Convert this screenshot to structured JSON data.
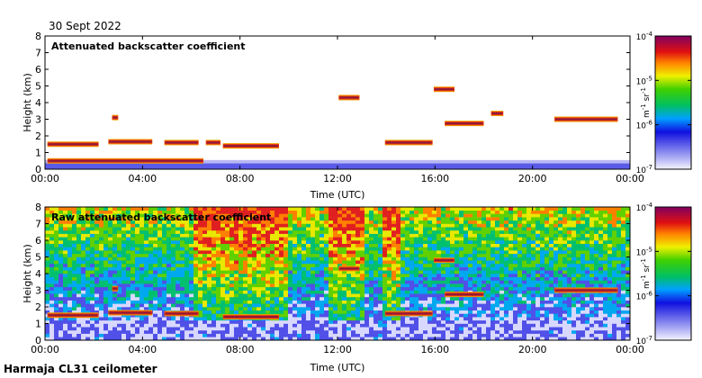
{
  "date_label": "30 Sept 2022",
  "instrument_label": "Harmaja CL31 ceilometer",
  "colors": {
    "background": "#ffffff",
    "cloud_core": "#8b1a3c",
    "cloud_edge": "#e83010",
    "surface_haze": "#4040e0"
  },
  "chart_data": [
    {
      "type": "heatmap",
      "title": "Attenuated backscatter coefficient",
      "xlabel": "Time (UTC)",
      "ylabel": "Height (km)",
      "xlim": [
        0,
        24
      ],
      "ylim": [
        0,
        8
      ],
      "x_tick_values": [
        0,
        4,
        8,
        12,
        16,
        20,
        24
      ],
      "x_tick_labels": [
        "00:00",
        "04:00",
        "08:00",
        "12:00",
        "16:00",
        "20:00",
        "00:00"
      ],
      "y_tick_labels": [
        "0",
        "1",
        "2",
        "3",
        "4",
        "5",
        "6",
        "7",
        "8"
      ],
      "colorbar": {
        "scale": "log",
        "range": [
          1e-07,
          0.0001
        ],
        "tick_bases": [
          "10",
          "10",
          "10",
          "10"
        ],
        "tick_exponents": [
          "-7",
          "-6",
          "-5",
          "-4"
        ],
        "unit_label": "m",
        "unit_exp1": "-1",
        "unit_sr": "sr",
        "unit_exp2": "-1"
      },
      "background_noise": false,
      "cloud_layers": [
        {
          "t_start": 0.1,
          "t_end": 2.2,
          "height_km": 1.5
        },
        {
          "t_start": 2.6,
          "t_end": 4.4,
          "height_km": 1.65
        },
        {
          "t_start": 4.9,
          "t_end": 6.3,
          "height_km": 1.6
        },
        {
          "t_start": 6.6,
          "t_end": 7.2,
          "height_km": 1.6
        },
        {
          "t_start": 7.3,
          "t_end": 9.6,
          "height_km": 1.4
        },
        {
          "t_start": 2.75,
          "t_end": 3.0,
          "height_km": 3.1
        },
        {
          "t_start": 12.05,
          "t_end": 12.9,
          "height_km": 4.3
        },
        {
          "t_start": 13.95,
          "t_end": 15.9,
          "height_km": 1.6
        },
        {
          "t_start": 15.95,
          "t_end": 16.8,
          "height_km": 4.8
        },
        {
          "t_start": 16.4,
          "t_end": 18.0,
          "height_km": 2.75
        },
        {
          "t_start": 18.3,
          "t_end": 18.8,
          "height_km": 3.35
        },
        {
          "t_start": 20.9,
          "t_end": 23.5,
          "height_km": 3.0
        },
        {
          "t_start": 0.1,
          "t_end": 6.5,
          "height_km": 0.5
        }
      ]
    },
    {
      "type": "heatmap",
      "title": "Raw attenuated backscatter coefficient",
      "xlabel": "Time (UTC)",
      "ylabel": "Height (km)",
      "xlim": [
        0,
        24
      ],
      "ylim": [
        0,
        8
      ],
      "x_tick_values": [
        0,
        4,
        8,
        12,
        16,
        20,
        24
      ],
      "x_tick_labels": [
        "00:00",
        "04:00",
        "08:00",
        "12:00",
        "16:00",
        "20:00",
        "00:00"
      ],
      "y_tick_labels": [
        "0",
        "1",
        "2",
        "3",
        "4",
        "5",
        "6",
        "7",
        "8"
      ],
      "colorbar": {
        "scale": "log",
        "range": [
          1e-07,
          0.0001
        ],
        "tick_bases": [
          "10",
          "10",
          "10",
          "10"
        ],
        "tick_exponents": [
          "-7",
          "-6",
          "-5",
          "-4"
        ],
        "unit_label": "m",
        "unit_exp1": "-1",
        "unit_sr": "sr",
        "unit_exp2": "-1"
      },
      "background_noise": true,
      "cloud_layers": [
        {
          "t_start": 0.1,
          "t_end": 2.2,
          "height_km": 1.5
        },
        {
          "t_start": 2.6,
          "t_end": 4.4,
          "height_km": 1.65
        },
        {
          "t_start": 4.9,
          "t_end": 6.3,
          "height_km": 1.6
        },
        {
          "t_start": 7.3,
          "t_end": 9.6,
          "height_km": 1.4
        },
        {
          "t_start": 2.75,
          "t_end": 3.0,
          "height_km": 3.1
        },
        {
          "t_start": 12.05,
          "t_end": 12.9,
          "height_km": 4.3
        },
        {
          "t_start": 13.95,
          "t_end": 15.9,
          "height_km": 1.6
        },
        {
          "t_start": 15.95,
          "t_end": 16.8,
          "height_km": 4.8
        },
        {
          "t_start": 16.4,
          "t_end": 18.0,
          "height_km": 2.75
        },
        {
          "t_start": 20.9,
          "t_end": 23.5,
          "height_km": 3.0
        }
      ]
    }
  ]
}
